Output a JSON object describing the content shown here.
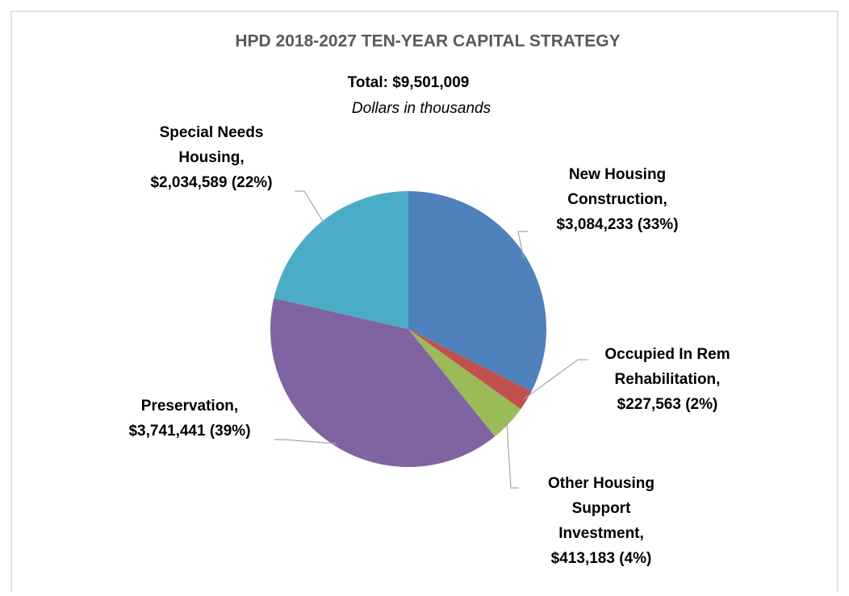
{
  "chart_data": {
    "type": "pie",
    "title": "HPD 2018-2027 TEN-YEAR CAPITAL STRATEGY",
    "subtitle": "Total: $9,501,009",
    "note": "Dollars in thousands",
    "category_lines": [
      [
        "New Housing",
        "Construction,"
      ],
      [
        "Occupied In Rem",
        "Rehabilitation,"
      ],
      [
        "Other Housing",
        "Support",
        "Investment,"
      ],
      [
        "Preservation,"
      ],
      [
        "Special Needs",
        "Housing,"
      ]
    ],
    "values": [
      3084233,
      227563,
      413183,
      3741441,
      2034589
    ],
    "value_labels": [
      "$3,084,233 (33%)",
      "$227,563 (2%)",
      "$413,183 (4%)",
      "$3,741,441 (39%)",
      "$2,034,589 (22%)"
    ],
    "colors": [
      "#4f81bd",
      "#c0504d",
      "#9bbb59",
      "#8064a2",
      "#4bacc6"
    ]
  }
}
